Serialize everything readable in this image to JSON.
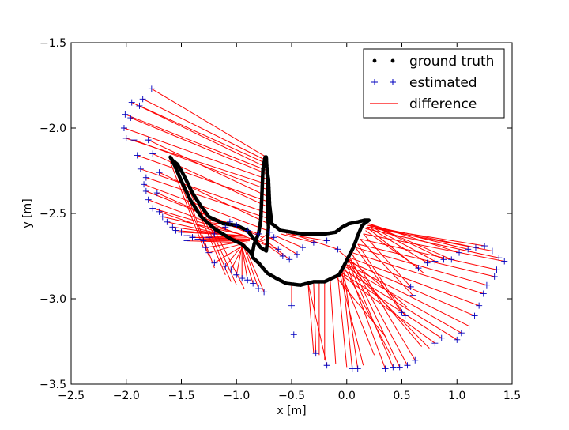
{
  "chart_data": {
    "type": "scatter",
    "title": "",
    "xlabel": "x [m]",
    "ylabel": "y [m]",
    "xlim": [
      -2.5,
      1.5
    ],
    "ylim": [
      -3.5,
      -1.5
    ],
    "xticks": [
      -2.5,
      -2.0,
      -1.5,
      -1.0,
      -0.5,
      0.0,
      0.5,
      1.0,
      1.5
    ],
    "yticks": [
      -3.5,
      -3.0,
      -2.5,
      -2.0,
      -1.5
    ],
    "xtick_labels": [
      "−2.5",
      "−2.0",
      "−1.5",
      "−1.0",
      "−0.5",
      "0.0",
      "0.5",
      "1.0",
      "1.5"
    ],
    "ytick_labels": [
      "−3.5",
      "−3.0",
      "−2.5",
      "−2.0",
      "−1.5"
    ],
    "grid": false,
    "legend_position": "top-right",
    "colors": {
      "ground_truth": "#000000",
      "estimated": "#0000bf",
      "difference": "#ff0000"
    },
    "series": [
      {
        "name": "ground truth",
        "marker": "dot"
      },
      {
        "name": "estimated",
        "marker": "plus"
      },
      {
        "name": "difference",
        "marker": "line"
      }
    ],
    "ground_truth_path": [
      [
        -0.73,
        -2.17
      ],
      [
        -0.72,
        -2.3
      ],
      [
        -0.72,
        -2.45
      ],
      [
        -0.71,
        -2.58
      ],
      [
        -0.72,
        -2.67
      ],
      [
        -0.73,
        -2.72
      ],
      [
        -0.78,
        -2.7
      ],
      [
        -0.83,
        -2.66
      ],
      [
        -0.9,
        -2.6
      ],
      [
        -1.0,
        -2.57
      ],
      [
        -1.12,
        -2.56
      ],
      [
        -1.25,
        -2.52
      ],
      [
        -1.33,
        -2.45
      ],
      [
        -1.4,
        -2.38
      ],
      [
        -1.46,
        -2.3
      ],
      [
        -1.5,
        -2.25
      ],
      [
        -1.54,
        -2.21
      ],
      [
        -1.58,
        -2.19
      ],
      [
        -1.6,
        -2.17
      ],
      [
        -1.56,
        -2.22
      ],
      [
        -1.5,
        -2.31
      ],
      [
        -1.42,
        -2.42
      ],
      [
        -1.32,
        -2.52
      ],
      [
        -1.2,
        -2.59
      ],
      [
        -1.05,
        -2.65
      ],
      [
        -0.95,
        -2.68
      ],
      [
        -0.87,
        -2.73
      ],
      [
        -0.85,
        -2.76
      ],
      [
        -0.8,
        -2.79
      ],
      [
        -0.72,
        -2.85
      ],
      [
        -0.64,
        -2.88
      ],
      [
        -0.55,
        -2.91
      ],
      [
        -0.42,
        -2.92
      ],
      [
        -0.3,
        -2.9
      ],
      [
        -0.2,
        -2.9
      ],
      [
        -0.07,
        -2.86
      ],
      [
        -0.02,
        -2.8
      ],
      [
        0.02,
        -2.75
      ],
      [
        0.06,
        -2.7
      ],
      [
        0.1,
        -2.63
      ],
      [
        0.14,
        -2.57
      ],
      [
        0.2,
        -2.54
      ],
      [
        0.16,
        -2.54
      ],
      [
        0.1,
        -2.55
      ],
      [
        0.02,
        -2.56
      ],
      [
        -0.04,
        -2.58
      ],
      [
        -0.1,
        -2.61
      ],
      [
        -0.2,
        -2.62
      ],
      [
        -0.3,
        -2.62
      ],
      [
        -0.4,
        -2.62
      ],
      [
        -0.5,
        -2.61
      ],
      [
        -0.6,
        -2.6
      ],
      [
        -0.68,
        -2.56
      ],
      [
        -0.7,
        -2.45
      ],
      [
        -0.71,
        -2.3
      ],
      [
        -0.74,
        -2.17
      ],
      [
        -0.76,
        -2.24
      ],
      [
        -0.77,
        -2.4
      ],
      [
        -0.78,
        -2.54
      ],
      [
        -0.8,
        -2.62
      ],
      [
        -0.84,
        -2.68
      ],
      [
        -0.86,
        -2.75
      ]
    ],
    "estimated_points": [
      [
        -1.77,
        -1.77
      ],
      [
        -1.85,
        -1.83
      ],
      [
        -1.88,
        -1.87
      ],
      [
        -1.95,
        -1.85
      ],
      [
        -2.01,
        -1.92
      ],
      [
        -1.96,
        -1.94
      ],
      [
        -2.02,
        -2.0
      ],
      [
        -2.0,
        -2.06
      ],
      [
        -1.93,
        -2.07
      ],
      [
        -1.8,
        -2.07
      ],
      [
        -1.9,
        -2.16
      ],
      [
        -1.76,
        -2.15
      ],
      [
        -1.87,
        -2.24
      ],
      [
        -1.82,
        -2.29
      ],
      [
        -1.7,
        -2.26
      ],
      [
        -1.84,
        -2.33
      ],
      [
        -1.82,
        -2.37
      ],
      [
        -1.8,
        -2.42
      ],
      [
        -1.72,
        -2.38
      ],
      [
        -1.76,
        -2.47
      ],
      [
        -1.7,
        -2.49
      ],
      [
        -1.67,
        -2.52
      ],
      [
        -1.63,
        -2.55
      ],
      [
        -1.58,
        -2.58
      ],
      [
        -1.55,
        -2.6
      ],
      [
        -1.5,
        -2.61
      ],
      [
        -1.45,
        -2.63
      ],
      [
        -1.4,
        -2.64
      ],
      [
        -1.35,
        -2.65
      ],
      [
        -1.3,
        -2.66
      ],
      [
        -1.28,
        -2.7
      ],
      [
        -1.25,
        -2.73
      ],
      [
        -1.2,
        -2.79
      ],
      [
        -1.1,
        -2.81
      ],
      [
        -1.05,
        -2.83
      ],
      [
        -1.0,
        -2.86
      ],
      [
        -0.95,
        -2.88
      ],
      [
        -0.9,
        -2.89
      ],
      [
        -0.85,
        -2.91
      ],
      [
        -0.8,
        -2.94
      ],
      [
        -0.75,
        -2.96
      ],
      [
        -0.5,
        -3.04
      ],
      [
        -0.48,
        -3.21
      ],
      [
        -0.28,
        -3.32
      ],
      [
        -0.18,
        -3.39
      ],
      [
        0.05,
        -3.41
      ],
      [
        0.1,
        -3.41
      ],
      [
        0.35,
        -3.41
      ],
      [
        0.42,
        -3.4
      ],
      [
        0.48,
        -3.4
      ],
      [
        0.55,
        -3.39
      ],
      [
        0.62,
        -3.36
      ],
      [
        0.5,
        -3.08
      ],
      [
        0.53,
        -3.1
      ],
      [
        0.6,
        -2.98
      ],
      [
        0.58,
        -2.93
      ],
      [
        0.65,
        -2.82
      ],
      [
        0.73,
        -2.79
      ],
      [
        0.8,
        -2.78
      ],
      [
        0.88,
        -2.77
      ],
      [
        0.95,
        -2.77
      ],
      [
        1.02,
        -2.73
      ],
      [
        1.1,
        -2.71
      ],
      [
        1.17,
        -2.7
      ],
      [
        1.25,
        -2.69
      ],
      [
        1.32,
        -2.72
      ],
      [
        1.38,
        -2.76
      ],
      [
        1.43,
        -2.78
      ],
      [
        1.36,
        -2.83
      ],
      [
        1.34,
        -2.87
      ],
      [
        1.27,
        -2.92
      ],
      [
        1.24,
        -2.97
      ],
      [
        1.2,
        -3.04
      ],
      [
        1.16,
        -3.1
      ],
      [
        1.11,
        -3.16
      ],
      [
        1.04,
        -3.2
      ],
      [
        1.0,
        -3.24
      ],
      [
        0.86,
        -3.23
      ],
      [
        0.8,
        -3.26
      ],
      [
        -0.08,
        -2.71
      ],
      [
        -0.18,
        -2.66
      ],
      [
        -0.3,
        -2.67
      ],
      [
        -0.4,
        -2.7
      ],
      [
        -0.45,
        -2.74
      ],
      [
        -0.52,
        -2.77
      ],
      [
        -0.58,
        -2.75
      ],
      [
        -0.62,
        -2.71
      ],
      [
        -0.66,
        -2.64
      ],
      [
        -0.7,
        -2.61
      ],
      [
        -0.8,
        -2.62
      ],
      [
        -0.9,
        -2.6
      ],
      [
        -1.0,
        -2.57
      ],
      [
        -1.06,
        -2.55
      ],
      [
        -1.1,
        -2.58
      ],
      [
        -1.2,
        -2.62
      ],
      [
        -1.25,
        -2.64
      ],
      [
        -1.4,
        -2.64
      ],
      [
        -1.45,
        -2.66
      ]
    ],
    "difference_pairs": [
      [
        -0.73,
        -2.17,
        -1.77,
        -1.77
      ],
      [
        -0.73,
        -2.19,
        -1.85,
        -1.83
      ],
      [
        -0.72,
        -2.21,
        -1.88,
        -1.87
      ],
      [
        -0.73,
        -2.23,
        -1.95,
        -1.85
      ],
      [
        -0.72,
        -2.25,
        -2.01,
        -1.92
      ],
      [
        -0.72,
        -2.27,
        -1.96,
        -1.94
      ],
      [
        -0.72,
        -2.3,
        -2.02,
        -2.0
      ],
      [
        -0.72,
        -2.33,
        -2.0,
        -2.06
      ],
      [
        -0.72,
        -2.36,
        -1.93,
        -2.07
      ],
      [
        -0.72,
        -2.4,
        -1.8,
        -2.07
      ],
      [
        -0.72,
        -2.43,
        -1.9,
        -2.16
      ],
      [
        -0.72,
        -2.46,
        -1.76,
        -2.15
      ],
      [
        -0.71,
        -2.5,
        -1.87,
        -2.24
      ],
      [
        -0.71,
        -2.53,
        -1.82,
        -2.29
      ],
      [
        -0.71,
        -2.56,
        -1.7,
        -2.26
      ],
      [
        -0.72,
        -2.6,
        -1.84,
        -2.33
      ],
      [
        -0.76,
        -2.64,
        -1.82,
        -2.37
      ],
      [
        -0.82,
        -2.66,
        -1.8,
        -2.42
      ],
      [
        -0.88,
        -2.62,
        -1.72,
        -2.38
      ],
      [
        -0.92,
        -2.63,
        -1.76,
        -2.47
      ],
      [
        -0.95,
        -2.66,
        -1.7,
        -2.49
      ],
      [
        -0.98,
        -2.62,
        -1.67,
        -2.52
      ],
      [
        -1.0,
        -2.64,
        -1.63,
        -2.55
      ],
      [
        -1.02,
        -2.63,
        -1.58,
        -2.58
      ],
      [
        -0.95,
        -2.63,
        -1.55,
        -2.6
      ],
      [
        -0.93,
        -2.63,
        -1.5,
        -2.61
      ],
      [
        -0.9,
        -2.64,
        -1.45,
        -2.63
      ],
      [
        -0.9,
        -2.65,
        -1.4,
        -2.64
      ],
      [
        -0.88,
        -2.65,
        -1.35,
        -2.65
      ],
      [
        -0.88,
        -2.66,
        -1.3,
        -2.66
      ],
      [
        -0.9,
        -2.66,
        -1.28,
        -2.7
      ],
      [
        -0.9,
        -2.67,
        -1.25,
        -2.73
      ],
      [
        -0.92,
        -2.68,
        -1.2,
        -2.79
      ],
      [
        -0.94,
        -2.68,
        -1.1,
        -2.81
      ],
      [
        -0.94,
        -2.69,
        -1.05,
        -2.83
      ],
      [
        -0.95,
        -2.69,
        -1.0,
        -2.86
      ],
      [
        -0.95,
        -2.7,
        -0.95,
        -2.88
      ],
      [
        -0.95,
        -2.7,
        -0.9,
        -2.89
      ],
      [
        -0.95,
        -2.7,
        -0.85,
        -2.91
      ],
      [
        -0.93,
        -2.7,
        -0.8,
        -2.94
      ],
      [
        -0.92,
        -2.7,
        -0.75,
        -2.96
      ],
      [
        -0.5,
        -2.92,
        -0.5,
        -3.04
      ],
      [
        -0.3,
        -2.91,
        -0.28,
        -3.32
      ],
      [
        -0.35,
        -2.91,
        -0.18,
        -3.39
      ],
      [
        -0.04,
        -2.84,
        0.05,
        -3.41
      ],
      [
        -0.03,
        -2.83,
        0.1,
        -3.41
      ],
      [
        0.0,
        -2.8,
        0.35,
        -3.41
      ],
      [
        0.01,
        -2.78,
        0.42,
        -3.4
      ],
      [
        0.02,
        -2.77,
        0.48,
        -3.4
      ],
      [
        0.03,
        -2.76,
        0.55,
        -3.39
      ],
      [
        0.05,
        -2.74,
        0.62,
        -3.36
      ],
      [
        0.08,
        -2.7,
        0.5,
        -3.08
      ],
      [
        0.1,
        -2.68,
        0.53,
        -3.1
      ],
      [
        0.12,
        -2.65,
        0.6,
        -2.98
      ],
      [
        0.15,
        -2.62,
        0.58,
        -2.93
      ],
      [
        0.17,
        -2.6,
        0.65,
        -2.82
      ],
      [
        0.2,
        -2.58,
        0.73,
        -2.79
      ],
      [
        0.2,
        -2.57,
        0.8,
        -2.78
      ],
      [
        0.2,
        -2.56,
        0.88,
        -2.77
      ],
      [
        0.2,
        -2.56,
        0.95,
        -2.77
      ],
      [
        0.2,
        -2.56,
        1.02,
        -2.73
      ],
      [
        0.2,
        -2.57,
        1.1,
        -2.71
      ],
      [
        0.19,
        -2.57,
        1.17,
        -2.7
      ],
      [
        0.19,
        -2.58,
        1.25,
        -2.69
      ],
      [
        0.18,
        -2.58,
        1.32,
        -2.72
      ],
      [
        0.17,
        -2.59,
        1.38,
        -2.76
      ],
      [
        0.15,
        -2.62,
        1.43,
        -2.78
      ],
      [
        0.12,
        -2.65,
        1.36,
        -2.83
      ],
      [
        0.1,
        -2.68,
        1.34,
        -2.87
      ],
      [
        0.08,
        -2.7,
        1.27,
        -2.92
      ],
      [
        0.05,
        -2.73,
        1.24,
        -2.97
      ],
      [
        0.03,
        -2.76,
        1.2,
        -3.04
      ],
      [
        0.01,
        -2.78,
        1.16,
        -3.1
      ],
      [
        0.0,
        -2.8,
        1.11,
        -3.16
      ],
      [
        -0.02,
        -2.81,
        1.04,
        -3.2
      ],
      [
        -0.03,
        -2.83,
        1.0,
        -3.24
      ],
      [
        -0.04,
        -2.85,
        0.86,
        -3.23
      ],
      [
        -0.05,
        -2.86,
        0.8,
        -3.26
      ],
      [
        -0.5,
        -2.62,
        -0.08,
        -2.71
      ],
      [
        -0.55,
        -2.62,
        -0.18,
        -2.66
      ],
      [
        -0.6,
        -2.62,
        -0.3,
        -2.67
      ],
      [
        -0.65,
        -2.63,
        -0.4,
        -2.7
      ],
      [
        -0.7,
        -2.64,
        -0.45,
        -2.74
      ],
      [
        -0.75,
        -2.65,
        -0.52,
        -2.77
      ],
      [
        -0.78,
        -2.66,
        -0.58,
        -2.75
      ],
      [
        -0.8,
        -2.67,
        -0.62,
        -2.71
      ],
      [
        -0.82,
        -2.67,
        -0.66,
        -2.64
      ],
      [
        -0.84,
        -2.68,
        -0.7,
        -2.61
      ],
      [
        -1.4,
        -2.48,
        -0.8,
        -2.62
      ],
      [
        -1.35,
        -2.52,
        -0.9,
        -2.6
      ],
      [
        -1.3,
        -2.55,
        -1.0,
        -2.57
      ],
      [
        -1.25,
        -2.57,
        -1.06,
        -2.55
      ],
      [
        -1.2,
        -2.59,
        -1.1,
        -2.58
      ],
      [
        -1.1,
        -2.62,
        -1.2,
        -2.62
      ],
      [
        -1.05,
        -2.64,
        -1.25,
        -2.64
      ],
      [
        -1.0,
        -2.65,
        -1.4,
        -2.64
      ],
      [
        -0.95,
        -2.67,
        -1.45,
        -2.66
      ],
      [
        -0.1,
        -2.87,
        0.35,
        -3.22
      ],
      [
        -0.35,
        -2.91,
        -0.3,
        -3.32
      ],
      [
        -0.25,
        -2.91,
        -0.25,
        -3.33
      ],
      [
        -0.2,
        -2.9,
        -0.2,
        -3.36
      ],
      [
        -0.15,
        -2.89,
        -0.1,
        -3.38
      ],
      [
        -0.08,
        -2.87,
        0.0,
        -3.4
      ],
      [
        -0.06,
        -2.86,
        0.15,
        -3.39
      ],
      [
        -0.05,
        -2.85,
        0.25,
        -3.33
      ],
      [
        -0.02,
        -2.82,
        0.4,
        -3.33
      ],
      [
        0.0,
        -2.8,
        0.75,
        -3.29
      ],
      [
        0.02,
        -2.78,
        0.68,
        -3.28
      ],
      [
        -0.07,
        -2.72,
        0.55,
        -3.05
      ],
      [
        0.18,
        -2.58,
        0.7,
        -2.85
      ],
      [
        -1.6,
        -2.2,
        -1.3,
        -2.7
      ],
      [
        -1.55,
        -2.25,
        -1.25,
        -2.75
      ],
      [
        -1.5,
        -2.3,
        -1.2,
        -2.82
      ],
      [
        -1.45,
        -2.33,
        -1.1,
        -2.86
      ],
      [
        -1.4,
        -2.37,
        -1.05,
        -2.9
      ],
      [
        -1.35,
        -2.42,
        -1.0,
        -2.92
      ],
      [
        -1.3,
        -2.47,
        -0.93,
        -2.94
      ]
    ]
  }
}
